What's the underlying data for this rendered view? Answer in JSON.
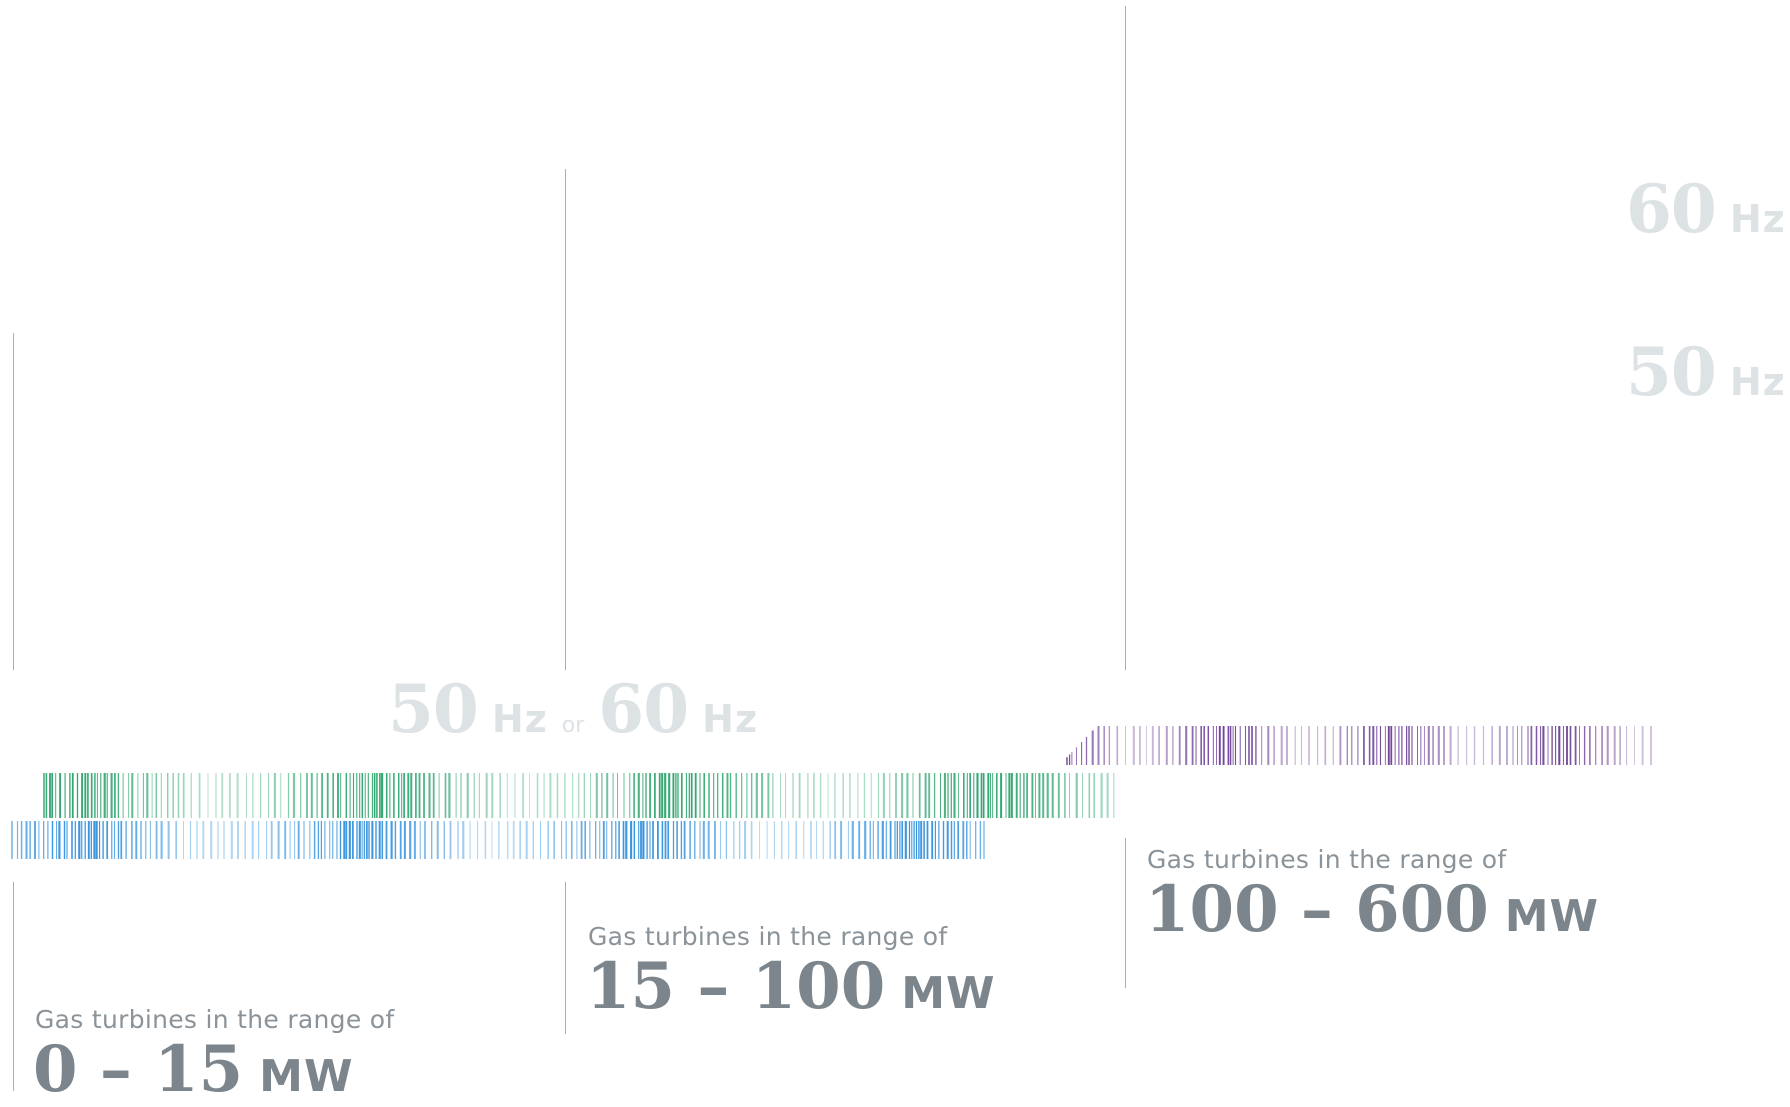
{
  "frequency_labels": {
    "top_60": {
      "number": "60",
      "unit": "Hz"
    },
    "top_50": {
      "number": "50",
      "unit": "Hz"
    },
    "combined": {
      "first_number": "50",
      "first_unit": "Hz",
      "connector": "or",
      "second_number": "60",
      "second_unit": "Hz"
    }
  },
  "segments": [
    {
      "caption": "Gas turbines in the range of",
      "range": "0 – 15",
      "unit": "MW",
      "color": "#2f8fdc"
    },
    {
      "caption": "Gas turbines in the range of",
      "range": "15 – 100",
      "unit": "MW",
      "color": "#2aa36a"
    },
    {
      "caption": "Gas turbines in the range of",
      "range": "100 – 600",
      "unit": "MW",
      "color": "#6d3f97"
    }
  ],
  "colors": {
    "frequency_text": "#dde2e5",
    "caption_text": "#8a9399",
    "range_text": "#7b858b",
    "divider": "#a9aeb2"
  }
}
